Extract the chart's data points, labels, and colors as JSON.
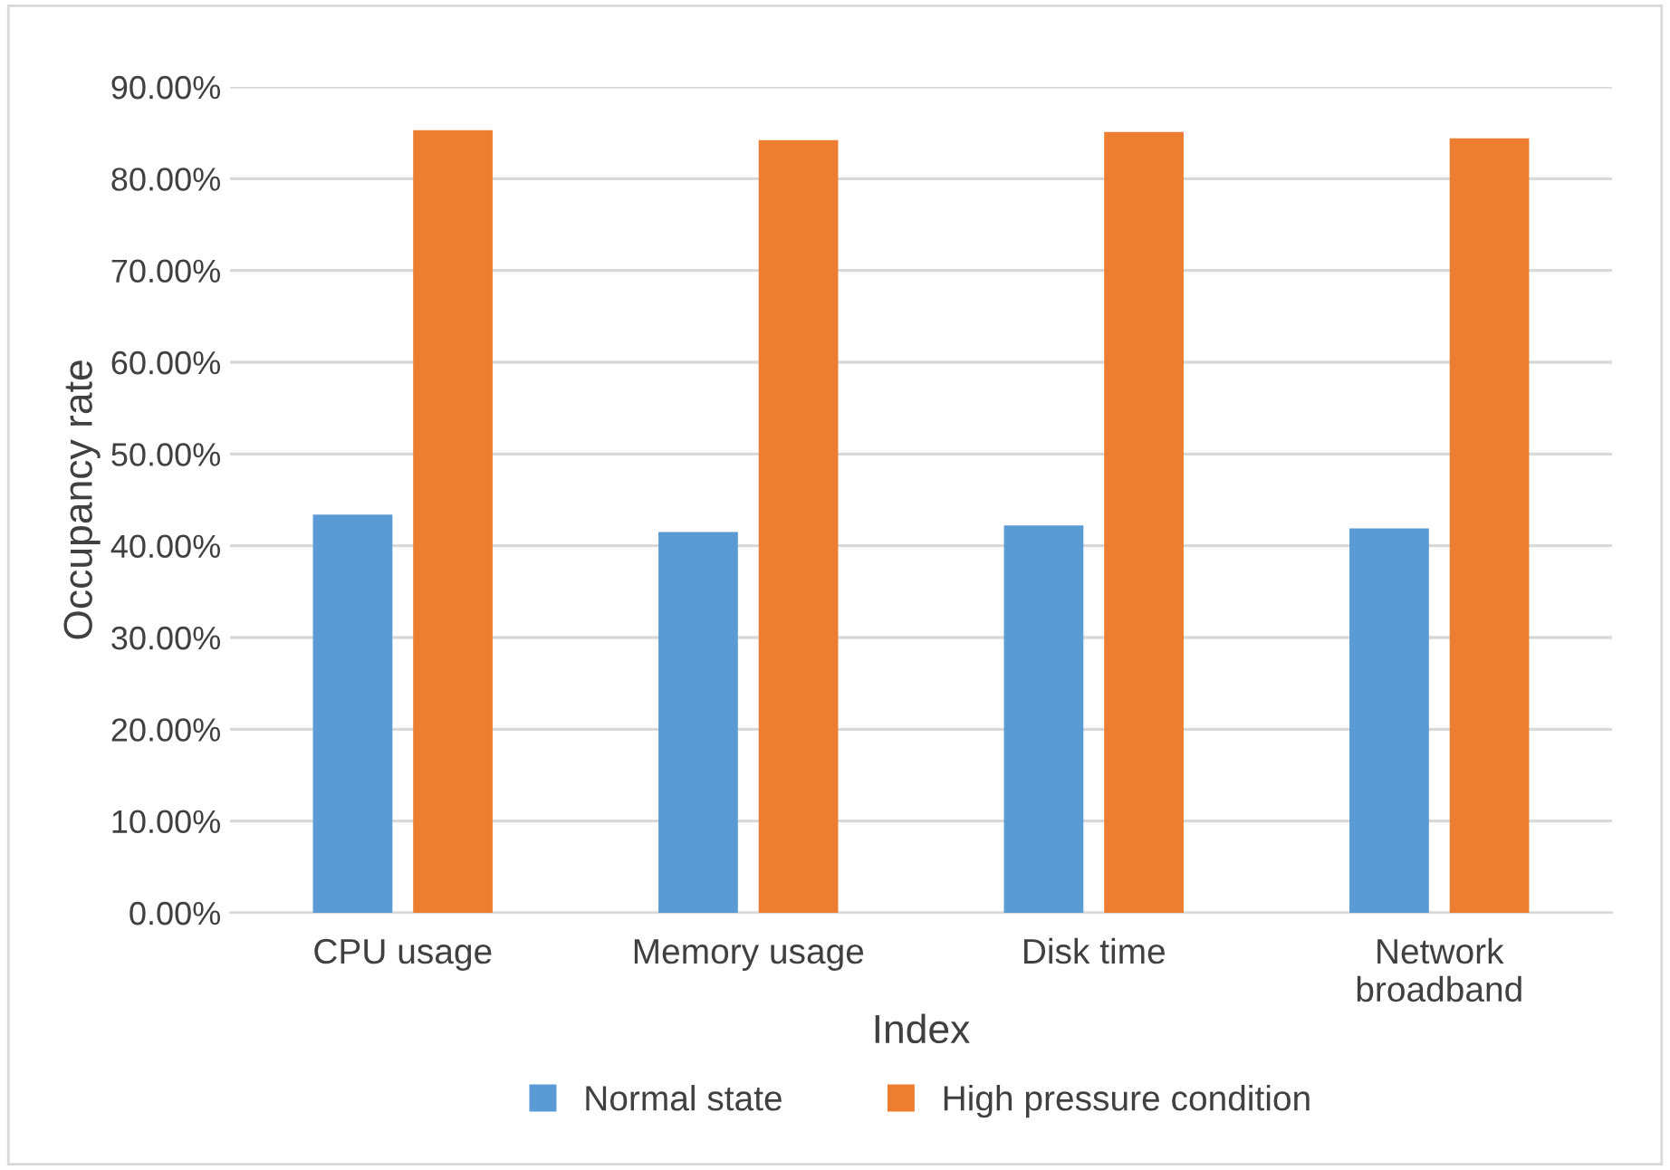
{
  "chart_data": {
    "type": "bar",
    "xlabel": "Index",
    "ylabel": "Occupancy rate",
    "categories": [
      "CPU usage",
      "Memory usage",
      "Disk time",
      "Network\nbroadband"
    ],
    "series": [
      {
        "name": "Normal state",
        "color": "#5b9bd5",
        "values": [
          43.4,
          41.5,
          42.2,
          41.9
        ]
      },
      {
        "name": "High pressure condition",
        "color": "#ed7d31",
        "values": [
          85.3,
          84.2,
          85.1,
          84.4
        ]
      }
    ],
    "ylim": [
      0,
      90
    ],
    "yticks": [
      {
        "value": 0,
        "label": "0.00%"
      },
      {
        "value": 10,
        "label": "10.00%"
      },
      {
        "value": 20,
        "label": "20.00%"
      },
      {
        "value": 30,
        "label": "30.00%"
      },
      {
        "value": 40,
        "label": "40.00%"
      },
      {
        "value": 50,
        "label": "50.00%"
      },
      {
        "value": 60,
        "label": "60.00%"
      },
      {
        "value": 70,
        "label": "70.00%"
      },
      {
        "value": 80,
        "label": "80.00%"
      },
      {
        "value": 90,
        "label": "90.00%"
      }
    ],
    "grid": "y",
    "legend": "bottom"
  }
}
